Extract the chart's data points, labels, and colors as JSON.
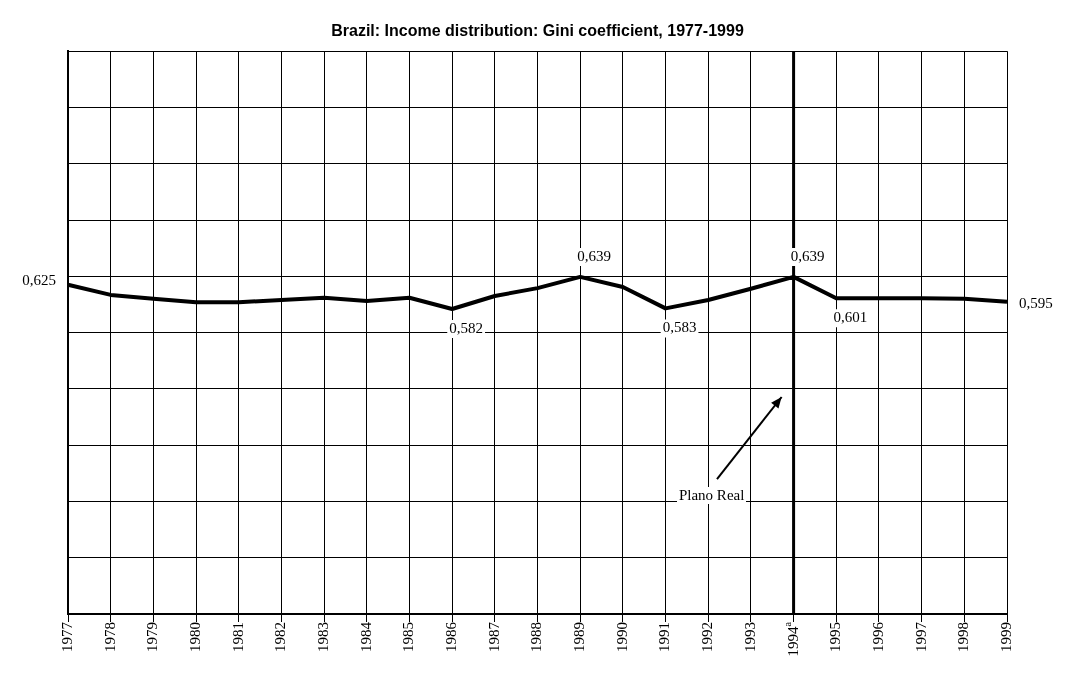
{
  "chart_data": {
    "type": "line",
    "title": "Brazil: Income distribution: Gini coefficient, 1977-1999",
    "categories": [
      "1977",
      "1978",
      "1979",
      "1980",
      "1981",
      "1982",
      "1983",
      "1984",
      "1985",
      "1986",
      "1987",
      "1988",
      "1989",
      "1990",
      "1991",
      "1992",
      "1993",
      "1994$^{a}$",
      "1995",
      "1996",
      "1997",
      "1998",
      "1999"
    ],
    "series": [
      {
        "color": "#000000",
        "values": [
          0.625,
          0.607,
          0.6,
          0.594,
          0.594,
          0.598,
          0.602,
          0.596,
          0.602,
          0.582,
          0.605,
          0.619,
          0.639,
          0.621,
          0.583,
          0.598,
          0.618,
          0.639,
          0.601,
          0.601,
          0.601,
          0.6,
          0.595
        ],
        "value_labels": [
          "0,625",
          null,
          null,
          null,
          null,
          null,
          null,
          null,
          null,
          "0,582",
          null,
          null,
          "0,639",
          null,
          "0,583",
          null,
          null,
          "0,639",
          "0,601",
          null,
          null,
          null,
          "0,595"
        ]
      }
    ],
    "ylim": [
      0.04,
      1.04
    ],
    "yticks": [
      {
        "value": 0.04,
        "label": null
      },
      {
        "value": 0.14,
        "label": null
      },
      {
        "value": 0.24,
        "label": null
      },
      {
        "value": 0.34,
        "label": null
      },
      {
        "value": 0.44,
        "label": null
      },
      {
        "value": 0.54,
        "label": null
      },
      {
        "value": 0.64,
        "label": null
      },
      {
        "value": 0.74,
        "label": null
      },
      {
        "value": 0.84,
        "label": null
      },
      {
        "value": 0.94,
        "label": null
      },
      {
        "value": 1.04,
        "label": null
      }
    ],
    "tick_labels": "x",
    "grid": true,
    "legend": false,
    "marker": "none",
    "line_style": "solid",
    "ref_lines": [
      {
        "axis": "x",
        "value": "1994$^{a}$",
        "color": "#000000"
      }
    ],
    "annotations": [
      "Plano Real"
    ]
  }
}
